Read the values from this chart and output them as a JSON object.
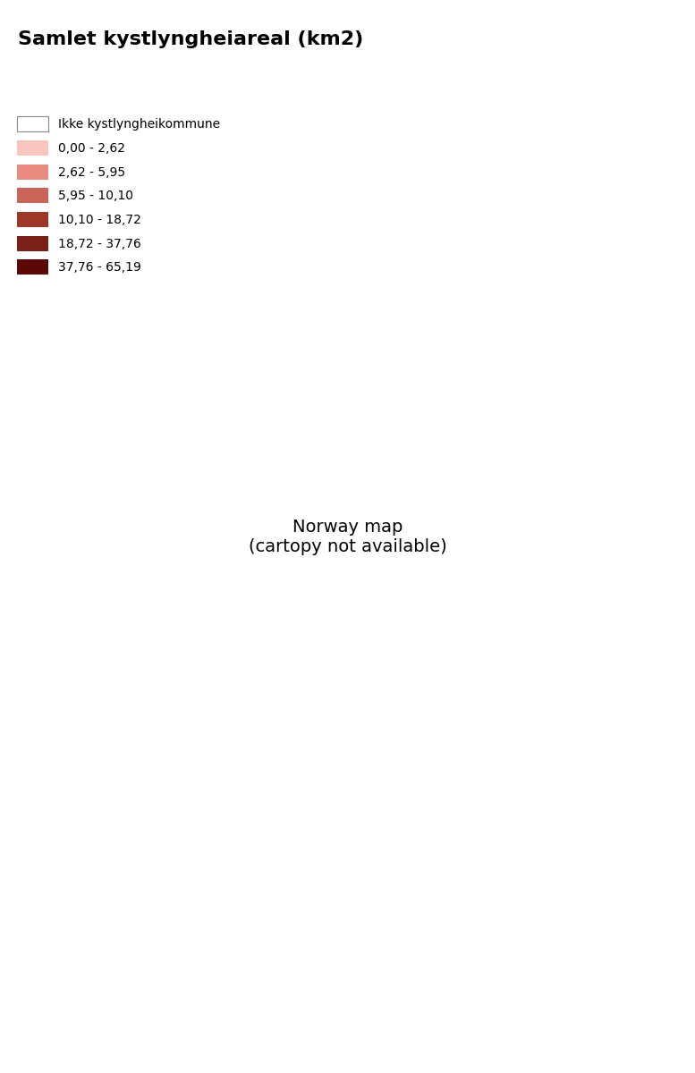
{
  "title": "Samlet kystlyngheiareal (km2)",
  "legend_labels": [
    "Ikke kystlyngheikommune",
    "0,00 - 2,62",
    "2,62 - 5,95",
    "5,95 - 10,10",
    "10,10 - 18,72",
    "18,72 - 37,76",
    "37,76 - 65,19"
  ],
  "legend_colors": [
    "#FFFFFF",
    "#F9C5BF",
    "#E88A80",
    "#C96558",
    "#9D3828",
    "#7B2018",
    "#5C0808"
  ],
  "border_color": "#AAAAAA",
  "border_width": 0.4,
  "figsize": [
    7.77,
    12.0
  ],
  "dpi": 100,
  "title_fontsize": 16,
  "title_fontweight": "bold",
  "legend_fontsize": 10,
  "legend_handleheight": 1.5,
  "legend_handlelength": 2.5,
  "legend_labelspacing": 0.7
}
